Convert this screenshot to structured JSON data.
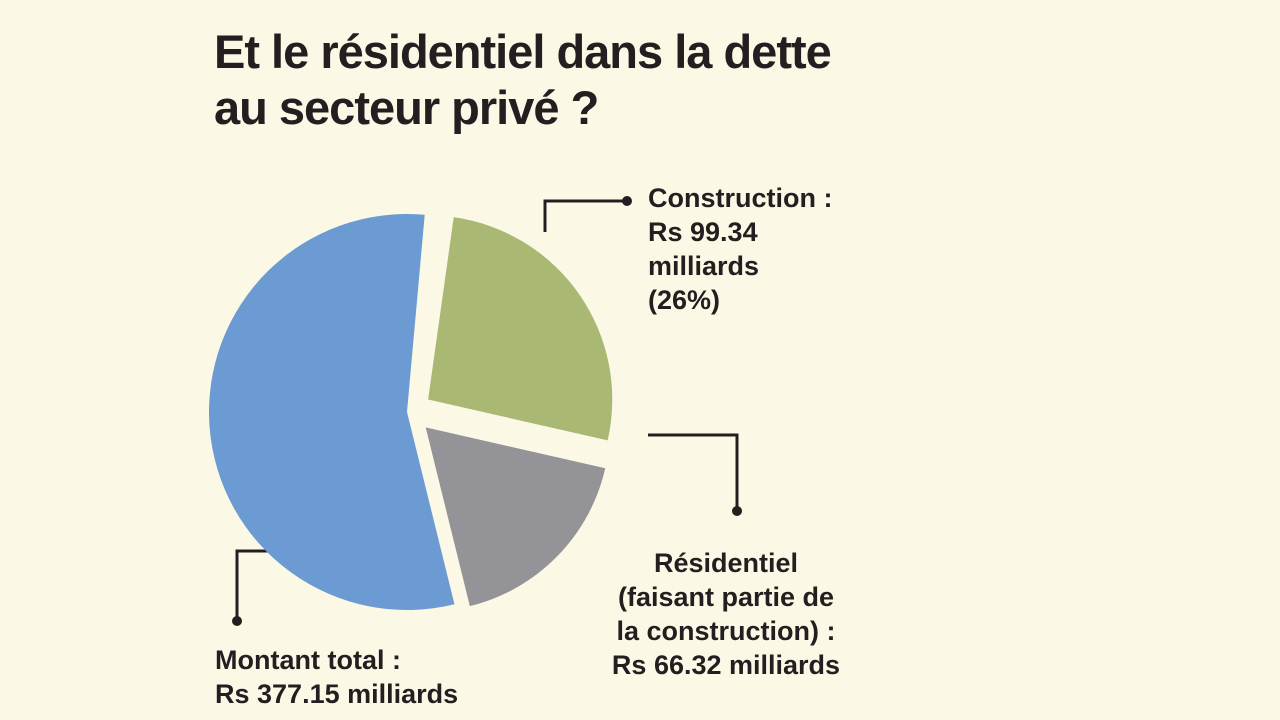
{
  "chart_data": {
    "type": "pie",
    "title_lines": [
      "Et le résidentiel dans la dette",
      "au secteur privé ?"
    ],
    "total": {
      "value": 377.15,
      "color": "#6b9bd2",
      "label_lines": [
        "Montant total :",
        "Rs 377.15 milliards"
      ]
    },
    "slices": [
      {
        "value": 99.34,
        "percent": 26,
        "color": "#a9b872",
        "label_lines": [
          "Construction :",
          "Rs 99.34",
          "milliards",
          "(26%)"
        ]
      },
      {
        "value": 66.32,
        "color": "#949498",
        "label_lines": [
          "Résidentiel",
          "(faisant partie de",
          "la construction) :",
          "Rs 66.32 milliards"
        ]
      }
    ]
  }
}
